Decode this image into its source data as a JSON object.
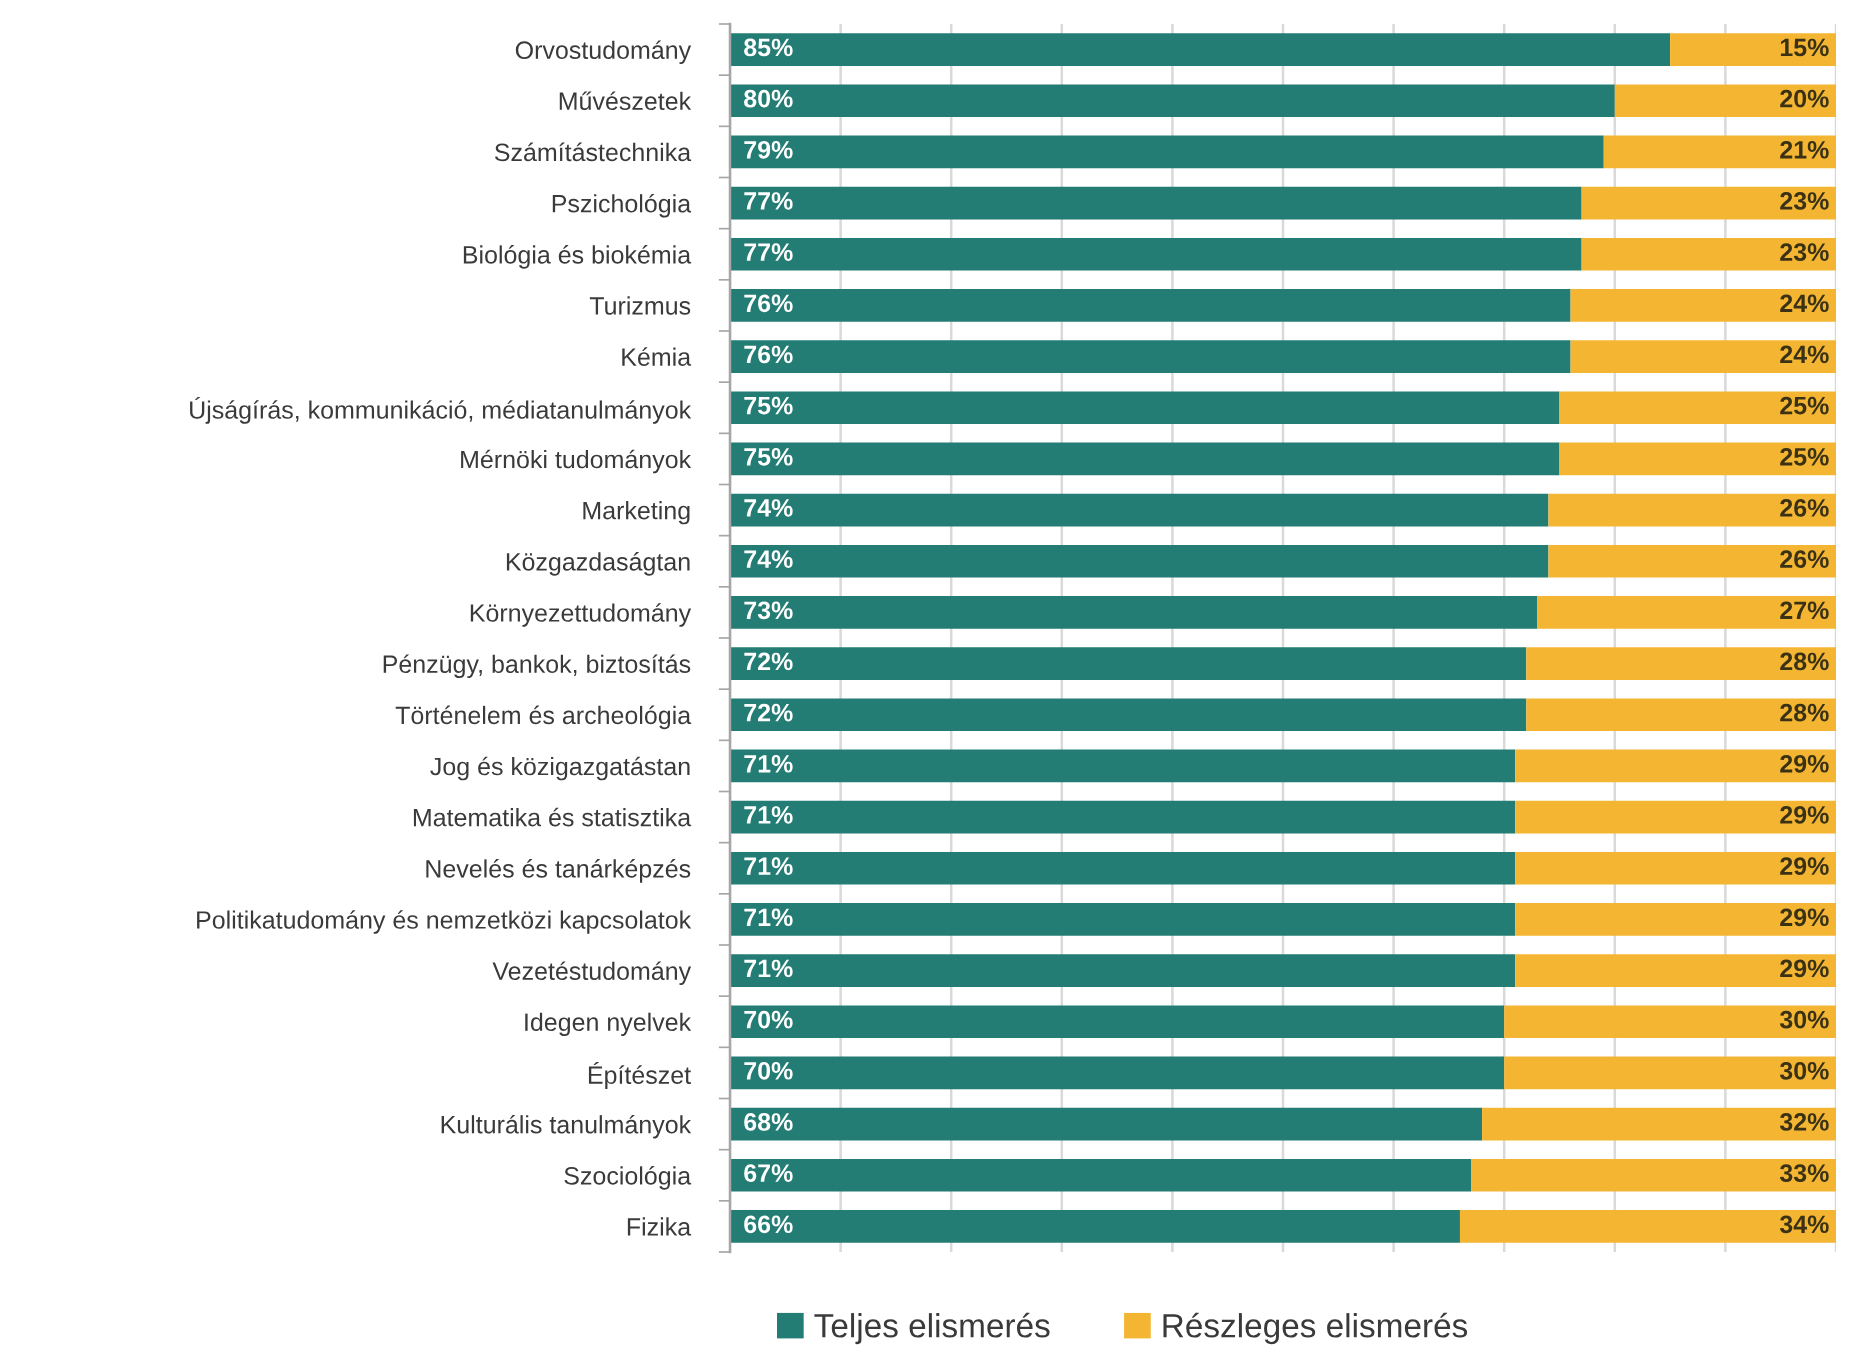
{
  "chart_data": {
    "type": "bar",
    "orientation": "horizontal",
    "stacked": true,
    "categories": [
      "Orvostudomány",
      "Művészetek",
      "Számítástechnika",
      "Pszichológia",
      "Biológia és biokémia",
      "Turizmus",
      "Kémia",
      "Újságírás, kommunikáció, médiatanulmányok",
      "Mérnöki tudományok",
      "Marketing",
      "Közgazdaságtan",
      "Környezettudomány",
      "Pénzügy, bankok, biztosítás",
      "Történelem és archeológia",
      "Jog és közigazgatástan",
      "Matematika és statisztika",
      "Nevelés és tanárképzés",
      "Politikatudomány és nemzetközi kapcsolatok",
      "Vezetéstudomány",
      "Idegen nyelvek",
      "Építészet",
      "Kulturális tanulmányok",
      "Szociológia",
      "Fizika"
    ],
    "series": [
      {
        "name": "Teljes elismerés",
        "color": "#237d74",
        "values": [
          85,
          80,
          79,
          77,
          77,
          76,
          76,
          75,
          75,
          74,
          74,
          73,
          72,
          72,
          71,
          71,
          71,
          71,
          71,
          70,
          70,
          68,
          67,
          66
        ],
        "value_labels": [
          "85%",
          "80%",
          "79%",
          "77%",
          "77%",
          "76%",
          "76%",
          "75%",
          "75%",
          "74%",
          "74%",
          "73%",
          "72%",
          "72%",
          "71%",
          "71%",
          "71%",
          "71%",
          "71%",
          "70%",
          "70%",
          "68%",
          "67%",
          "66%"
        ]
      },
      {
        "name": "Részleges elismerés",
        "color": "#f4b632",
        "values": [
          15,
          20,
          21,
          23,
          23,
          24,
          24,
          25,
          25,
          26,
          26,
          27,
          28,
          28,
          29,
          29,
          29,
          29,
          29,
          30,
          30,
          32,
          33,
          34
        ],
        "value_labels": [
          "15%",
          "20%",
          "21%",
          "23%",
          "23%",
          "24%",
          "24%",
          "25%",
          "25%",
          "26%",
          "26%",
          "27%",
          "28%",
          "28%",
          "29%",
          "29%",
          "29%",
          "29%",
          "29%",
          "30%",
          "30%",
          "32%",
          "33%",
          "34%"
        ]
      }
    ],
    "xlim": [
      0,
      100
    ],
    "xticks": [
      {
        "value": 0,
        "label": null
      },
      {
        "value": 10,
        "label": null
      },
      {
        "value": 20,
        "label": null
      },
      {
        "value": 30,
        "label": null
      },
      {
        "value": 40,
        "label": null
      },
      {
        "value": 50,
        "label": null
      },
      {
        "value": 60,
        "label": null
      },
      {
        "value": 70,
        "label": null
      },
      {
        "value": 80,
        "label": null
      },
      {
        "value": 90,
        "label": null
      },
      {
        "value": 100,
        "label": null
      }
    ],
    "grid": "x",
    "legend": "bottom",
    "tick_labels": "y"
  }
}
